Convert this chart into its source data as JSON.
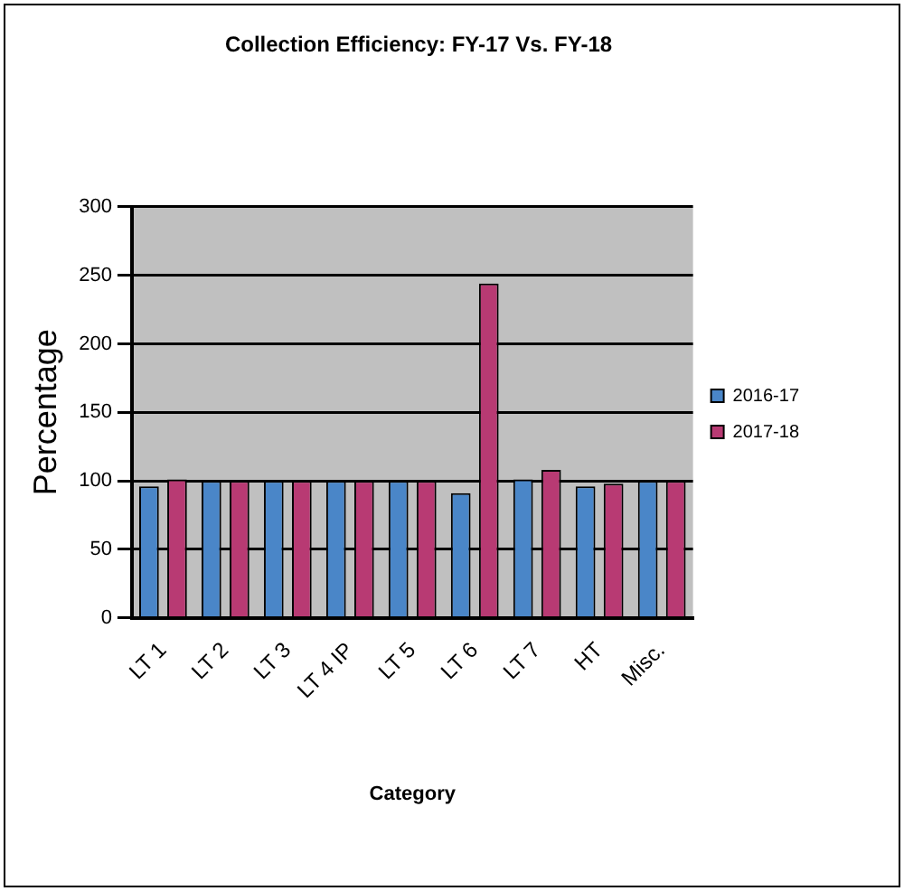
{
  "chart_data": {
    "type": "bar",
    "title": "Collection Efficiency: FY-17 Vs. FY-18",
    "xlabel": "Category",
    "ylabel": "Percentage",
    "categories": [
      "LT 1",
      "LT 2",
      "LT 3",
      "LT 4 IP",
      "LT 5",
      "LT 6",
      "LT 7",
      "HT",
      "Misc."
    ],
    "series": [
      {
        "name": "2016-17",
        "color": "#4a86c8",
        "values": [
          96,
          100,
          100,
          100,
          100,
          91,
          101,
          96,
          100
        ]
      },
      {
        "name": "2017-18",
        "color": "#b83a73",
        "values": [
          101,
          100,
          100,
          100,
          100,
          244,
          108,
          98,
          100
        ]
      }
    ],
    "ylim": [
      0,
      300
    ],
    "yticks": [
      0,
      50,
      100,
      150,
      200,
      250,
      300
    ],
    "grid": "y",
    "legend": "right"
  }
}
